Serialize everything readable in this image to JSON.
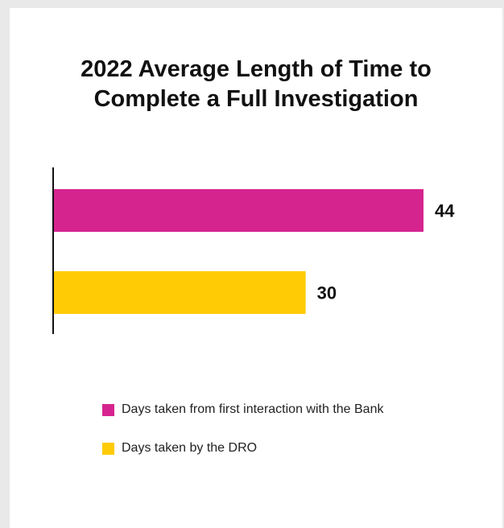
{
  "chart_data": {
    "type": "bar",
    "orientation": "horizontal",
    "title_lines": [
      "2022 Average Length of Time to",
      "Complete a Full Investigation"
    ],
    "series": [
      {
        "name": "Days taken from first interaction with the Bank",
        "value": 44,
        "label": "44",
        "color": "#d6248f"
      },
      {
        "name": "Days taken by the DRO",
        "value": 30,
        "label": "30",
        "color": "#ffcb05"
      }
    ],
    "xlim": [
      0,
      44
    ],
    "grid": false,
    "legend_position": "bottom"
  }
}
